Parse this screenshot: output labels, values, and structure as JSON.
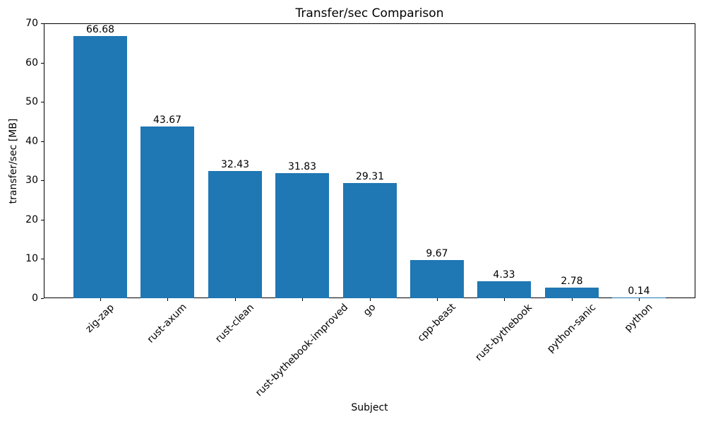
{
  "chart_data": {
    "type": "bar",
    "title": "Transfer/sec Comparison",
    "xlabel": "Subject",
    "ylabel": "transfer/sec [MB]",
    "categories": [
      "zig-zap",
      "rust-axum",
      "rust-clean",
      "rust-bythebook-improved",
      "go",
      "cpp-beast",
      "rust-bythebook",
      "python-sanic",
      "python"
    ],
    "values": [
      66.68,
      43.67,
      32.43,
      31.83,
      29.31,
      9.67,
      4.33,
      2.78,
      0.14
    ],
    "value_labels": [
      "66.68",
      "43.67",
      "32.43",
      "31.83",
      "29.31",
      "9.67",
      "4.33",
      "2.78",
      "0.14"
    ],
    "ytick_labels": [
      "0",
      "10",
      "20",
      "30",
      "40",
      "50",
      "60",
      "70"
    ],
    "yticks": [
      0,
      10,
      20,
      30,
      40,
      50,
      60,
      70
    ],
    "ylim": [
      0,
      70
    ],
    "bar_color": "#1f77b4",
    "grid": false,
    "legend": "none",
    "xtick_rotation_deg": 45
  },
  "colors": {
    "bar": "#1f77b4",
    "text": "#000000",
    "spine": "#000000",
    "background": "#ffffff"
  }
}
